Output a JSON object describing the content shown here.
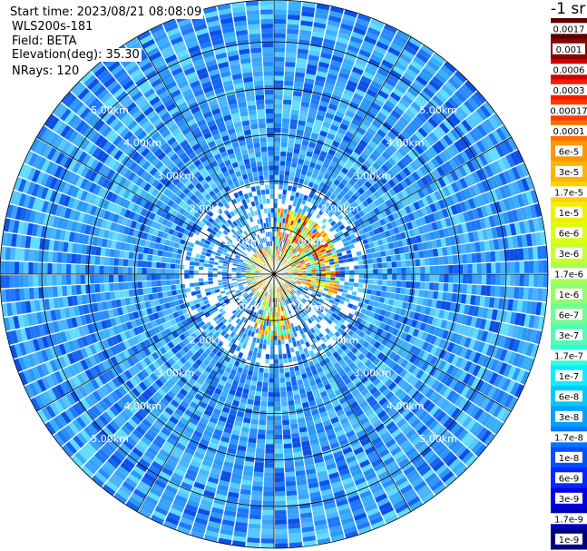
{
  "header": {
    "start_time": "Start time: 2023/08/21 08:08:09",
    "instrument": "WLS200s-181",
    "field": "Field: BETA",
    "elevation": "Elevation(deg): 35.30",
    "nrays": "NRays: 120"
  },
  "colorbar": {
    "unit_label": "-1 sr",
    "labels": [
      "0.0017",
      "0.001",
      "0.0006",
      "0.0003",
      "0.00017",
      "0.0001",
      "6e-5",
      "3e-5",
      "1.7e-5",
      "1e-5",
      "6e-6",
      "3e-6",
      "1.7e-6",
      "1e-6",
      "6e-7",
      "3e-7",
      "1.7e-7",
      "1e-7",
      "6e-8",
      "3e-8",
      "1.7e-8",
      "1e-8",
      "6e-9",
      "3e-9",
      "1.7e-9",
      "1e-9"
    ],
    "colors": [
      "#5a0000",
      "#8b0000",
      "#c80000",
      "#ff1a00",
      "#ff3c00",
      "#ff6e00",
      "#ff9600",
      "#ffb400",
      "#ffd200",
      "#f0f000",
      "#dcff10",
      "#c8ff30",
      "#a8ff50",
      "#90ff70",
      "#70ff90",
      "#50ffb4",
      "#30ffd8",
      "#10ecff",
      "#00c8ff",
      "#00a0ff",
      "#0078ff",
      "#0050ff",
      "#0028ff",
      "#0000e0",
      "#0000b4",
      "#000080"
    ]
  },
  "chart_data": {
    "type": "heatmap",
    "projection": "polar (PPI)",
    "variable": "BETA",
    "units": "m-1 sr-1",
    "nrays": 120,
    "range_rings": [
      {
        "range_km": 1,
        "label": "1.00km"
      },
      {
        "range_km": 2,
        "label": "2.00km"
      },
      {
        "range_km": 3,
        "label": "3.00km"
      },
      {
        "range_km": 4,
        "label": "4.00km"
      },
      {
        "range_km": 5,
        "label": "5.00km"
      }
    ],
    "max_range_km": 5.9,
    "spoke_interval_deg": 30,
    "background_level": "1.7e-8 to 1e-7",
    "enhanced_region": {
      "range_km": [
        0.0,
        1.5
      ],
      "peak_level": "1e-4",
      "sector": "north-east and south"
    }
  }
}
